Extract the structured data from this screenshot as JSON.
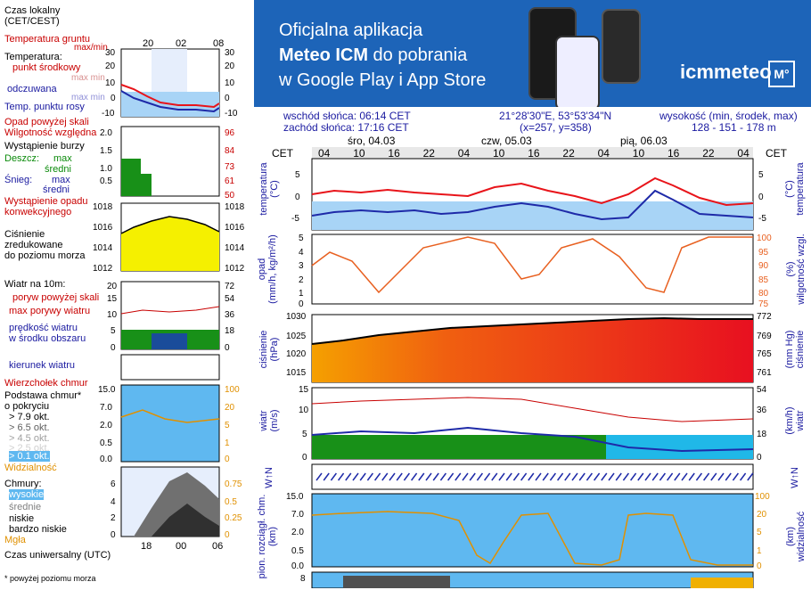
{
  "legend": {
    "time_local": "Czas lokalny\n(CET/CEST)",
    "soil_temp": "Temperatura gruntu",
    "soil_temp_sub": "max/min",
    "temperature": "Temperatura:",
    "mid_point": "punkt środkowy",
    "maxmin": "max min",
    "feels": "odczuwana",
    "feels_maxmin": "max min",
    "dew": "Temp. punktu rosy",
    "rain_over": "Opad powyżej skali",
    "humidity": "Wilgotność względna",
    "storm": "Wystąpienie burzy",
    "rain": "Deszcz:",
    "rain_max": "max",
    "rain_mean": "średni",
    "snow": "Śnieg:",
    "snow_max": "max",
    "snow_mean": "średni",
    "convective": "Wystąpienie opadu\nkonwekcyjnego",
    "pressure": "Ciśnienie\nzredukowane\ndo poziomu morza",
    "wind10": "Wiatr na 10m:",
    "gust_over": "poryw powyżej skali",
    "gust_max": "max porywy wiatru",
    "wind_speed": "prędkość wiatru\nw środku obszaru",
    "wind_dir": "kierunek wiatru",
    "cloud_top": "Wierzchołek chmur",
    "cloud_base": "Podstawa chmur*\no pokryciu",
    "okt79": "> 7.9 okt.",
    "okt65": "> 6.5 okt.",
    "okt45": "> 4.5 okt.",
    "okt25": "> 2.5 okt.",
    "okt01": "> 0.1 okt.",
    "visibility": "Widzialność",
    "clouds": "Chmury:",
    "high": "wysokie",
    "mid": "średnie",
    "low": "niskie",
    "vlow": "bardzo niskie",
    "fog": "Mgła",
    "utc": "Czas uniwersalny (UTC)",
    "footnote": "* powyżej poziomu morza",
    "ticks_local": [
      "20",
      "02",
      "08"
    ],
    "ticks_utc": [
      "18",
      "00",
      "06"
    ]
  },
  "banner": {
    "line1": "Oficjalna aplikacja",
    "line2_bold": "Meteo ICM",
    "line2_rest": " do pobrania",
    "line3": "w Google Play i App Store",
    "brand": "icmmeteo",
    "brand_box": "M°"
  },
  "info": {
    "sunrise": "wschód słońca: 06:14 CET",
    "sunset": "zachód słońca: 17:16 CET",
    "coords": "21°28'30\"E, 53°53'34\"N",
    "grid": "(x=257, y=358)",
    "altitude_label": "wysokość (min, środek, max)",
    "altitude_value": "128 - 151 - 178 m"
  },
  "timeline": {
    "cet": "CET",
    "days": [
      "śro, 04.03",
      "czw, 05.03",
      "pią, 06.03"
    ],
    "hours": [
      "04",
      "10",
      "16",
      "22",
      "04",
      "10",
      "16",
      "22",
      "04",
      "10",
      "16",
      "22",
      "04"
    ]
  },
  "panels": {
    "temp_left": "temperatura\n(°C)",
    "temp_right": "(°C)\ntemperatura",
    "temp_ticks": [
      "5",
      "0",
      "-5"
    ],
    "rain_left": "opad\n(mm/h, kg/m²/h)",
    "rain_right": "(%)\nwilgotność wzgl.",
    "rain_ticks": [
      "5",
      "4",
      "3",
      "2",
      "1",
      "0"
    ],
    "hum_ticks": [
      "100",
      "95",
      "90",
      "85",
      "80",
      "75"
    ],
    "pres_left": "ciśnienie\n(hPa)",
    "pres_right": "(mm Hg)\nciśnienie",
    "pres_ticks": [
      "1030",
      "1025",
      "1020",
      "1015"
    ],
    "pres_ticks_r": [
      "772",
      "769",
      "765",
      "761"
    ],
    "wind_left": "wiatr\n(m/s)",
    "wind_right": "(km/h)\nwiatr",
    "wind_ticks": [
      "15",
      "10",
      "5",
      "0"
    ],
    "wind_ticks_r": [
      "54",
      "36",
      "18",
      "0"
    ],
    "dir_left": "W↑N",
    "dir_right": "W↑N",
    "cloud_left": "pion. rozciągł. chm.\n(km)",
    "cloud_right": "(km)\nwidzialność",
    "cloud_ticks": [
      "15.0",
      "7.0",
      "2.0",
      "0.5",
      "0.0"
    ],
    "vis_ticks": [
      "100",
      "20",
      "5",
      "1",
      "0"
    ],
    "bottom_tick": "8"
  },
  "colors": {
    "banner_bg": "#1d64b8",
    "temp_red": "#e8141a",
    "dew_blue": "#1e2aa8",
    "pressure_yellow": "#f5f000",
    "wind_green": "#189018"
  }
}
